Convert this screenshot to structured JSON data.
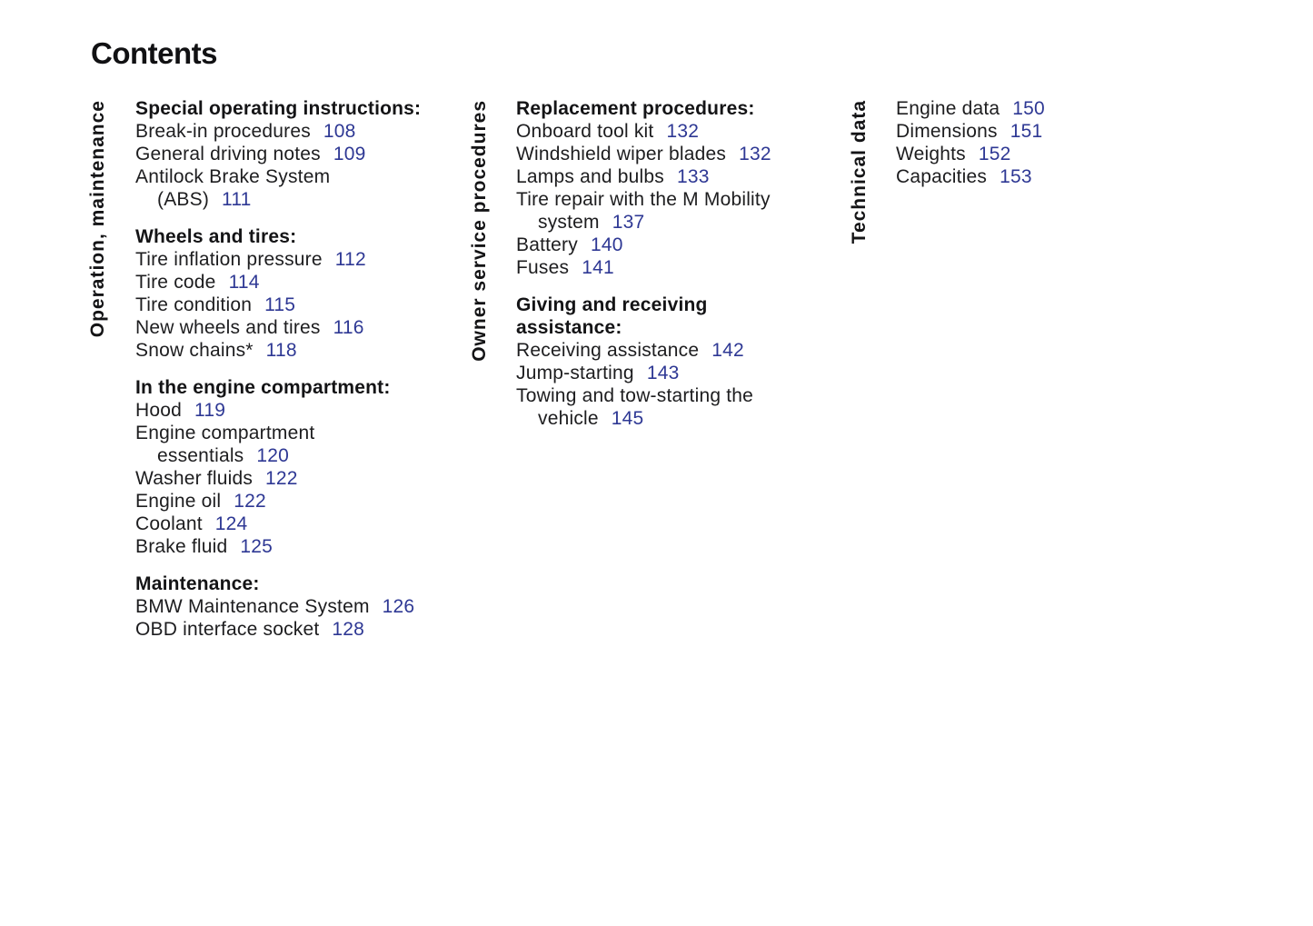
{
  "page": {
    "title": "Contents",
    "background": "#ffffff",
    "text_color": "#1d1d1f",
    "page_number_color": "#2e3894"
  },
  "columns": [
    {
      "label": "Operation, maintenance",
      "blocks": [
        {
          "heading": [
            "Special operating instructions:"
          ],
          "items": [
            {
              "text": "Break-in procedures",
              "page": "108"
            },
            {
              "text": "General driving notes",
              "page": "109"
            },
            {
              "text": "Antilock Brake System"
            },
            {
              "text": "(ABS)",
              "page": "111",
              "indent": true
            }
          ]
        },
        {
          "heading": [
            "Wheels and tires:"
          ],
          "items": [
            {
              "text": "Tire inflation pressure",
              "page": "112"
            },
            {
              "text": "Tire code",
              "page": "114"
            },
            {
              "text": "Tire condition",
              "page": "115"
            },
            {
              "text": "New wheels and tires",
              "page": "116"
            },
            {
              "text": "Snow chains*",
              "page": "118"
            }
          ]
        },
        {
          "heading": [
            "In the engine compartment:"
          ],
          "items": [
            {
              "text": "Hood",
              "page": "119"
            },
            {
              "text": "Engine compartment"
            },
            {
              "text": "essentials",
              "page": "120",
              "indent": true
            },
            {
              "text": "Washer fluids",
              "page": "122"
            },
            {
              "text": "Engine oil",
              "page": "122"
            },
            {
              "text": "Coolant",
              "page": "124"
            },
            {
              "text": "Brake fluid",
              "page": "125"
            }
          ]
        },
        {
          "heading": [
            "Maintenance:"
          ],
          "items": [
            {
              "text": "BMW Maintenance System",
              "page": "126"
            },
            {
              "text": "OBD interface socket",
              "page": "128"
            }
          ]
        }
      ]
    },
    {
      "label": "Owner service procedures",
      "blocks": [
        {
          "heading": [
            "Replacement procedures:"
          ],
          "items": [
            {
              "text": "Onboard tool kit",
              "page": "132"
            },
            {
              "text": "Windshield wiper blades",
              "page": "132"
            },
            {
              "text": "Lamps and bulbs",
              "page": "133"
            },
            {
              "text": "Tire repair with the M Mobility"
            },
            {
              "text": "system",
              "page": "137",
              "indent": true
            },
            {
              "text": "Battery",
              "page": "140"
            },
            {
              "text": "Fuses",
              "page": "141"
            }
          ]
        },
        {
          "heading": [
            "Giving and receiving",
            "assistance:"
          ],
          "items": [
            {
              "text": "Receiving assistance",
              "page": "142"
            },
            {
              "text": "Jump-starting",
              "page": "143"
            },
            {
              "text": "Towing and tow-starting the"
            },
            {
              "text": "vehicle",
              "page": "145",
              "indent": true
            }
          ]
        }
      ]
    },
    {
      "label": "Technical data",
      "blocks": [
        {
          "heading": [],
          "items": [
            {
              "text": "Engine data",
              "page": "150"
            },
            {
              "text": "Dimensions",
              "page": "151"
            },
            {
              "text": "Weights",
              "page": "152"
            },
            {
              "text": "Capacities",
              "page": "153"
            }
          ]
        }
      ]
    }
  ]
}
